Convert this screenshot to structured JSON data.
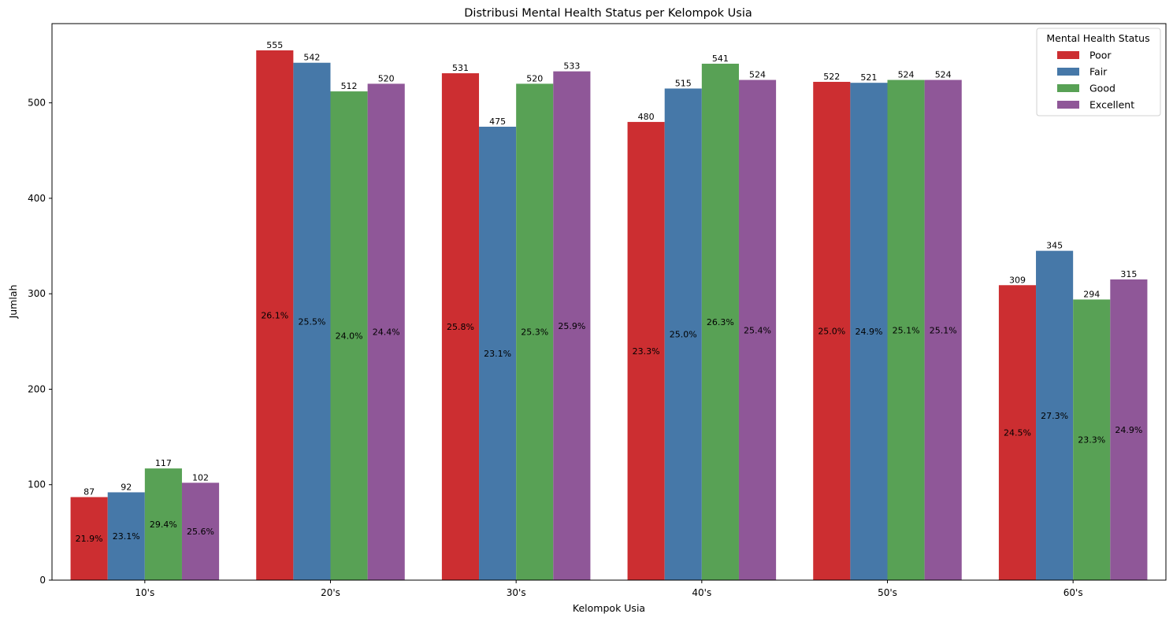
{
  "chart_data": {
    "type": "bar",
    "title": "Distribusi Mental Health Status per Kelompok Usia",
    "xlabel": "Kelompok Usia",
    "ylabel": "Jumlah",
    "ylim": [
      0,
      583
    ],
    "yticks": [
      0,
      100,
      200,
      300,
      400,
      500
    ],
    "grid": false,
    "legend_title": "Mental Health Status",
    "legend_position": "top-right",
    "categories": [
      "10's",
      "20's",
      "30's",
      "40's",
      "50's",
      "60's"
    ],
    "series": [
      {
        "name": "Poor",
        "color": "#cc2e31",
        "values": [
          87,
          555,
          531,
          480,
          522,
          309
        ],
        "percent_labels": [
          "21.9%",
          "26.1%",
          "25.8%",
          "23.3%",
          "25.0%",
          "24.5%"
        ]
      },
      {
        "name": "Fair",
        "color": "#4678a8",
        "values": [
          92,
          542,
          475,
          515,
          521,
          345
        ],
        "percent_labels": [
          "23.1%",
          "25.5%",
          "23.1%",
          "25.0%",
          "24.9%",
          "27.3%"
        ]
      },
      {
        "name": "Good",
        "color": "#58a155",
        "values": [
          117,
          512,
          520,
          541,
          524,
          294
        ],
        "percent_labels": [
          "29.4%",
          "24.0%",
          "25.3%",
          "26.3%",
          "25.1%",
          "23.3%"
        ]
      },
      {
        "name": "Excellent",
        "color": "#8f5798",
        "values": [
          102,
          520,
          533,
          524,
          524,
          315
        ],
        "percent_labels": [
          "25.6%",
          "24.4%",
          "25.9%",
          "25.4%",
          "25.1%",
          "24.9%"
        ]
      }
    ]
  }
}
